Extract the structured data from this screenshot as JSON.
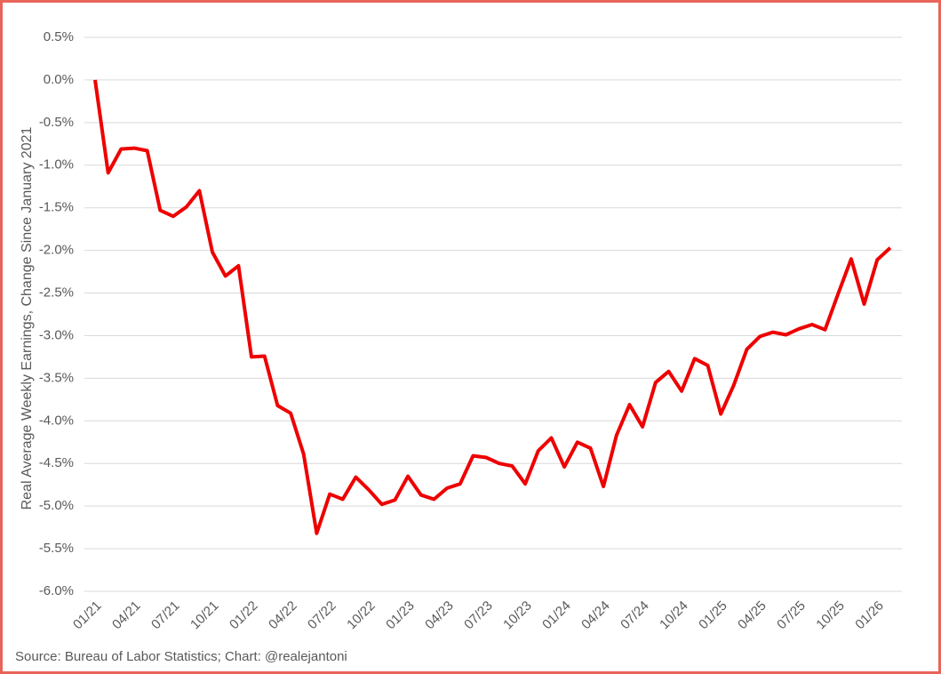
{
  "chart_data": {
    "type": "line",
    "ylabel": "Real Average Weekly Earnings, Change Since January 2021",
    "source": "Source: Bureau of Labor Statistics; Chart: @realejantoni",
    "categories": [
      "01/21",
      null,
      null,
      "04/21",
      null,
      null,
      "07/21",
      null,
      null,
      "10/21",
      null,
      null,
      "01/22",
      null,
      null,
      "04/22",
      null,
      null,
      "07/22",
      null,
      null,
      "10/22",
      null,
      null,
      "01/23",
      null,
      null,
      "04/23",
      null,
      null,
      "07/23",
      null,
      null,
      "10/23",
      null,
      null,
      "01/24",
      null,
      null,
      "04/24",
      null,
      null,
      "07/24",
      null,
      null,
      "10/24",
      null,
      null,
      "01/25",
      null,
      null,
      "04/25",
      null,
      null,
      "07/25",
      null,
      null,
      "10/25",
      null,
      null,
      "01/26",
      null
    ],
    "values": [
      0.0,
      -1.09,
      -0.81,
      -0.8,
      -0.83,
      -1.53,
      -1.6,
      -1.49,
      -1.3,
      -2.02,
      -2.3,
      -2.18,
      -3.25,
      -3.24,
      -3.82,
      -3.91,
      -4.39,
      -5.32,
      -4.86,
      -4.92,
      -4.66,
      -4.81,
      -4.98,
      -4.93,
      -4.65,
      -4.87,
      -4.92,
      -4.79,
      -4.74,
      -4.41,
      -4.43,
      -4.5,
      -4.53,
      -4.74,
      -4.35,
      -4.2,
      -4.54,
      -4.25,
      -4.32,
      -4.77,
      -4.17,
      -3.81,
      -4.07,
      -3.55,
      -3.42,
      -3.65,
      -3.27,
      -3.35,
      -3.92,
      -3.58,
      -3.16,
      -3.01,
      -2.96,
      -2.99,
      -2.92,
      -2.87,
      -2.93,
      -2.51,
      -2.1,
      -2.63,
      -2.11,
      -1.97
    ],
    "color": "#ee0000",
    "ylim": [
      -6.0,
      0.5
    ],
    "yticks": [
      {
        "value": 0.5,
        "label": "0.5%"
      },
      {
        "value": 0.0,
        "label": "0.0%"
      },
      {
        "value": -0.5,
        "label": "-0.5%"
      },
      {
        "value": -1.0,
        "label": "-1.0%"
      },
      {
        "value": -1.5,
        "label": "-1.5%"
      },
      {
        "value": -2.0,
        "label": "-2.0%"
      },
      {
        "value": -2.5,
        "label": "-2.5%"
      },
      {
        "value": -3.0,
        "label": "-3.0%"
      },
      {
        "value": -3.5,
        "label": "-3.5%"
      },
      {
        "value": -4.0,
        "label": "-4.0%"
      },
      {
        "value": -4.5,
        "label": "-4.5%"
      },
      {
        "value": -5.0,
        "label": "-5.0%"
      },
      {
        "value": -5.5,
        "label": "-5.5%"
      },
      {
        "value": -6.0,
        "label": "-6.0%"
      }
    ],
    "grid": true
  }
}
